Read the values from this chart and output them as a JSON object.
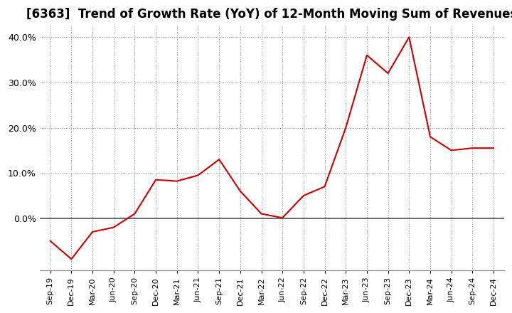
{
  "title": "[6363]  Trend of Growth Rate (YoY) of 12-Month Moving Sum of Revenues",
  "x_labels": [
    "Sep-19",
    "Dec-19",
    "Mar-20",
    "Jun-20",
    "Sep-20",
    "Dec-20",
    "Mar-21",
    "Jun-21",
    "Sep-21",
    "Dec-21",
    "Mar-22",
    "Jun-22",
    "Sep-22",
    "Dec-22",
    "Mar-23",
    "Jun-23",
    "Sep-23",
    "Dec-23",
    "Mar-24",
    "Jun-24",
    "Sep-24",
    "Dec-24"
  ],
  "y_values": [
    -0.05,
    -0.09,
    -0.03,
    -0.02,
    0.01,
    0.085,
    0.082,
    0.095,
    0.13,
    0.06,
    0.01,
    0.001,
    0.05,
    0.07,
    0.2,
    0.36,
    0.32,
    0.4,
    0.18,
    0.15,
    0.155,
    0.155
  ],
  "line_color": "#cc0000",
  "line_width": 1.5,
  "ylim": [
    -0.115,
    0.425
  ],
  "yticks": [
    0.0,
    0.1,
    0.2,
    0.3,
    0.4
  ],
  "ytick_labels": [
    "0.0%",
    "10.0%",
    "20.0%",
    "30.0%",
    "40.0%"
  ],
  "background_color": "#ffffff",
  "plot_bg_color": "#ffffff",
  "grid_color": "#999999",
  "title_fontsize": 12,
  "zero_line_color": "#555555"
}
